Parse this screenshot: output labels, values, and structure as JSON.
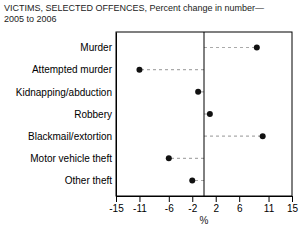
{
  "chart_data": {
    "type": "lollipop",
    "orientation": "horizontal",
    "title": "VICTIMS, SELECTED OFFENCES, Percent change in number—\n2005 to 2006",
    "categories": [
      "Murder",
      "Attempted murder",
      "Kidnapping/abduction",
      "Robbery",
      "Blackmail/extortion",
      "Motor vehicle theft",
      "Other theft"
    ],
    "values": [
      9,
      -11,
      -1,
      1,
      10,
      -6,
      -2
    ],
    "xlabel": "%",
    "xlim": [
      -15,
      15
    ],
    "xticks": [
      -15,
      -11,
      -6,
      -2,
      2,
      6,
      11,
      15
    ],
    "color": "#111111",
    "marker": "circle",
    "line_style": "dashed"
  }
}
